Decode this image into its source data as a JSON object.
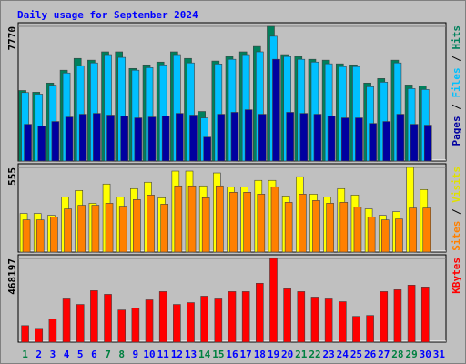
{
  "chart_data": {
    "type": "bar",
    "title": "Daily usage for September 2024",
    "legend_separator": " / ",
    "categories": [
      "1",
      "2",
      "3",
      "4",
      "5",
      "6",
      "7",
      "8",
      "9",
      "10",
      "11",
      "12",
      "13",
      "14",
      "15",
      "16",
      "17",
      "18",
      "19",
      "20",
      "21",
      "22",
      "23",
      "24",
      "25",
      "26",
      "27",
      "28",
      "29",
      "30",
      "31"
    ],
    "category_colors": [
      "#008040",
      "#0000ff",
      "#0000ff",
      "#0000ff",
      "#0000ff",
      "#0000ff",
      "#008040",
      "#008040",
      "#0000ff",
      "#0000ff",
      "#0000ff",
      "#0000ff",
      "#0000ff",
      "#008040",
      "#008040",
      "#0000ff",
      "#0000ff",
      "#0000ff",
      "#0000ff",
      "#0000ff",
      "#008040",
      "#008040",
      "#0000ff",
      "#0000ff",
      "#0000ff",
      "#0000ff",
      "#0000ff",
      "#008040",
      "#008040",
      "#0000ff",
      "#0000ff"
    ],
    "panels": [
      {
        "ylim": [
          0,
          7770
        ],
        "yticks": [
          7770
        ],
        "series": [
          {
            "name": "Hits",
            "color": "#00805c",
            "values": [
              4070,
              3970,
              4500,
              5240,
              5920,
              5820,
              6300,
              6300,
              5340,
              5550,
              5710,
              6300,
              5920,
              2860,
              5770,
              6030,
              6300,
              6610,
              7770,
              6140,
              6030,
              5870,
              5820,
              5610,
              5550,
              4500,
              4760,
              5820,
              4390,
              4340,
              null
            ]
          },
          {
            "name": "Files",
            "color": "#00c0ff",
            "values": [
              3950,
              3860,
              4380,
              5080,
              5500,
              5660,
              6140,
              5980,
              5240,
              5390,
              5550,
              6140,
              5660,
              2490,
              5600,
              5870,
              6140,
              6300,
              7200,
              6030,
              5870,
              5710,
              5610,
              5450,
              5450,
              4290,
              4550,
              5660,
              4180,
              4130,
              null
            ]
          },
          {
            "name": "Pages",
            "color": "#0000a0",
            "values": [
              2120,
              2010,
              2280,
              2540,
              2700,
              2750,
              2650,
              2600,
              2490,
              2540,
              2600,
              2750,
              2650,
              1380,
              2700,
              2810,
              2960,
              2700,
              5870,
              2810,
              2750,
              2700,
              2600,
              2490,
              2490,
              2170,
              2280,
              2700,
              2120,
              2070,
              null
            ]
          }
        ]
      },
      {
        "ylim": [
          0,
          555
        ],
        "yticks": [
          555
        ],
        "series": [
          {
            "name": "Visits",
            "color": "#ffff00",
            "values": [
              253,
              253,
              241,
              362,
              404,
              320,
              446,
              362,
              416,
              458,
              356,
              531,
              531,
              434,
              519,
              428,
              428,
              470,
              470,
              368,
              494,
              380,
              362,
              416,
              374,
              283,
              241,
              265,
              555,
              410,
              null
            ]
          },
          {
            "name": "Sites",
            "color": "#ff8000",
            "values": [
              211,
              211,
              229,
              283,
              307,
              307,
              320,
              301,
              344,
              374,
              314,
              434,
              434,
              356,
              434,
              392,
              392,
              380,
              428,
              326,
              380,
              338,
              320,
              326,
              295,
              229,
              211,
              217,
              289,
              289,
              null
            ]
          }
        ]
      },
      {
        "ylim": [
          0,
          468197
        ],
        "yticks": [
          468197
        ],
        "series": [
          {
            "name": "KBytes",
            "color": "#ff0000",
            "values": [
              92610,
              77175,
              128625,
              241815,
              210945,
              288120,
              267540,
              180075,
              190365,
              236670,
              282975,
              210945,
              221235,
              257250,
              241815,
              282975,
              282975,
              329280,
              468197,
              298410,
              282975,
              252105,
              241815,
              226380,
              144060,
              149205,
              282975,
              293265,
              318990,
              308700,
              null
            ]
          }
        ]
      }
    ]
  }
}
